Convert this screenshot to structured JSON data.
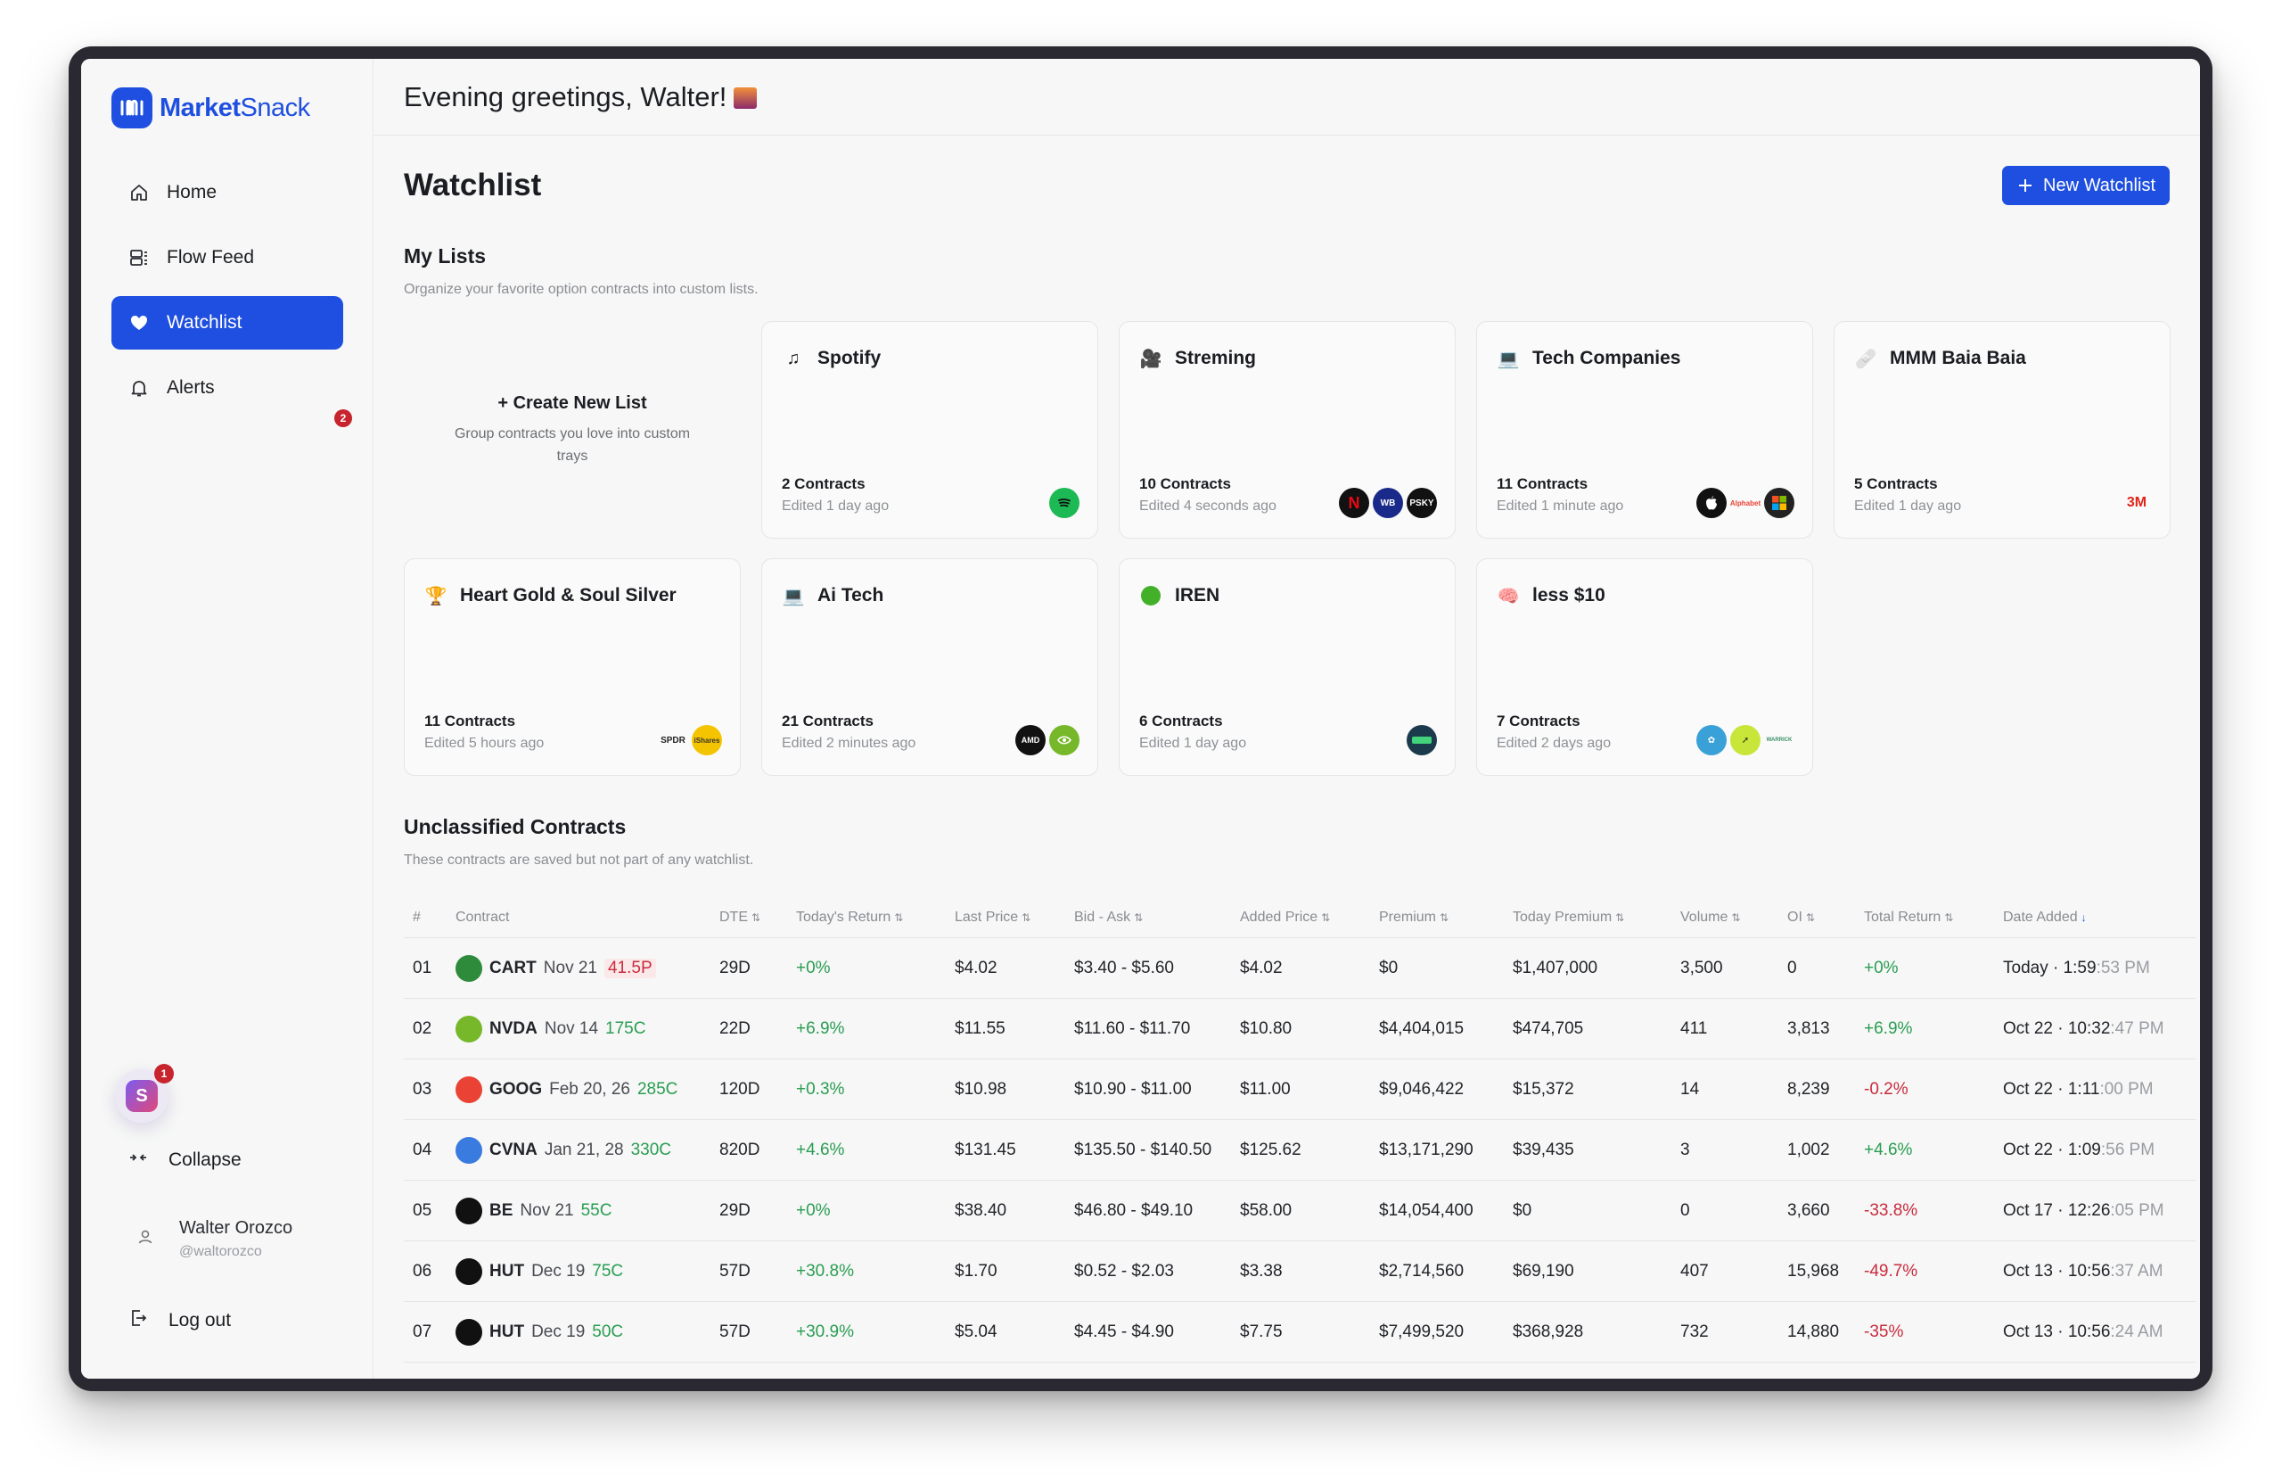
{
  "app": {
    "brand_bold": "Market",
    "brand_light": "Snack"
  },
  "greeting": "Evening greetings, Walter!",
  "nav": [
    {
      "label": "Home",
      "icon": "home-icon"
    },
    {
      "label": "Flow Feed",
      "icon": "feed-icon"
    },
    {
      "label": "Watchlist",
      "icon": "heart-icon",
      "active": true
    },
    {
      "label": "Alerts",
      "icon": "bell-icon",
      "badge": "2"
    }
  ],
  "help_badge": "1",
  "collapse_label": "Collapse",
  "user": {
    "name": "Walter Orozco",
    "handle": "@waltorozco"
  },
  "logout_label": "Log out",
  "page_title": "Watchlist",
  "new_button": "New Watchlist",
  "my_lists": {
    "title": "My Lists",
    "subtitle": "Organize your favorite option contracts into custom lists.",
    "create_title": "+ Create New List",
    "create_sub": "Group contracts you love into custom trays",
    "cards": [
      {
        "name": "Spotify",
        "emoji": "♫",
        "count": "2 Contracts",
        "edited": "Edited 1 day ago"
      },
      {
        "name": "Streming",
        "emoji": "🎥",
        "count": "10 Contracts",
        "edited": "Edited 4 seconds ago"
      },
      {
        "name": "Tech Companies",
        "emoji": "💻",
        "count": "11 Contracts",
        "edited": "Edited 1 minute ago"
      },
      {
        "name": "MMM Baia Baia",
        "emoji": "🩹",
        "count": "5 Contracts",
        "edited": "Edited 1 day ago",
        "logo_text": "3M"
      },
      {
        "name": "Heart Gold & Soul Silver",
        "emoji": "🏆",
        "count": "11 Contracts",
        "edited": "Edited 5 hours ago",
        "logo_text": "SPDR"
      },
      {
        "name": "Ai Tech",
        "emoji": "💻",
        "count": "21 Contracts",
        "edited": "Edited 2 minutes ago",
        "logo_text": "AMD"
      },
      {
        "name": "IREN",
        "emoji": "🟢",
        "count": "6 Contracts",
        "edited": "Edited 1 day ago"
      },
      {
        "name": "less $10",
        "emoji": "🧠",
        "count": "7 Contracts",
        "edited": "Edited 2 days ago"
      }
    ]
  },
  "unclassified": {
    "title": "Unclassified Contracts",
    "subtitle": "These contracts are saved but not part of any watchlist.",
    "columns": [
      "#",
      "Contract",
      "DTE",
      "Today's Return",
      "Last Price",
      "Bid - Ask",
      "Added Price",
      "Premium",
      "Today Premium",
      "Volume",
      "OI",
      "Total Return",
      "Date Added"
    ],
    "rows": [
      {
        "n": "01",
        "ticker": "CART",
        "exp": "Nov 21",
        "strike": "41.5P",
        "put": true,
        "dte": "29D",
        "today": "+0%",
        "today_sign": "pos",
        "last": "$4.02",
        "bidask": "$3.40 - $5.60",
        "added": "$4.02",
        "premium": "$0",
        "today_prem": "$1,407,000",
        "volume": "3,500",
        "oi": "0",
        "total": "+0%",
        "total_sign": "pos",
        "date": "Today · 1:59",
        "date_muted": ":53 PM",
        "logo_color": "#2e8b3c"
      },
      {
        "n": "02",
        "ticker": "NVDA",
        "exp": "Nov 14",
        "strike": "175C",
        "dte": "22D",
        "today": "+6.9%",
        "today_sign": "pos",
        "last": "$11.55",
        "bidask": "$11.60 - $11.70",
        "added": "$10.80",
        "premium": "$4,404,015",
        "today_prem": "$474,705",
        "volume": "411",
        "oi": "3,813",
        "total": "+6.9%",
        "total_sign": "pos",
        "date": "Oct 22 · 10:32",
        "date_muted": ":47 PM",
        "logo_color": "#76b82a"
      },
      {
        "n": "03",
        "ticker": "GOOG",
        "exp": "Feb 20, 26",
        "strike": "285C",
        "dte": "120D",
        "today": "+0.3%",
        "today_sign": "pos",
        "last": "$10.98",
        "bidask": "$10.90 - $11.00",
        "added": "$11.00",
        "premium": "$9,046,422",
        "today_prem": "$15,372",
        "volume": "14",
        "oi": "8,239",
        "total": "-0.2%",
        "total_sign": "neg",
        "date": "Oct 22 · 1:11",
        "date_muted": ":00 PM",
        "logo_color": "#ea4335"
      },
      {
        "n": "04",
        "ticker": "CVNA",
        "exp": "Jan 21, 28",
        "strike": "330C",
        "dte": "820D",
        "today": "+4.6%",
        "today_sign": "pos",
        "last": "$131.45",
        "bidask": "$135.50 - $140.50",
        "added": "$125.62",
        "premium": "$13,171,290",
        "today_prem": "$39,435",
        "volume": "3",
        "oi": "1,002",
        "total": "+4.6%",
        "total_sign": "pos",
        "date": "Oct 22 · 1:09",
        "date_muted": ":56 PM",
        "logo_color": "#3a7be0"
      },
      {
        "n": "05",
        "ticker": "BE",
        "exp": "Nov 21",
        "strike": "55C",
        "dte": "29D",
        "today": "+0%",
        "today_sign": "pos",
        "last": "$38.40",
        "bidask": "$46.80 - $49.10",
        "added": "$58.00",
        "premium": "$14,054,400",
        "today_prem": "$0",
        "volume": "0",
        "oi": "3,660",
        "total": "-33.8%",
        "total_sign": "neg",
        "date": "Oct 17 · 12:26",
        "date_muted": ":05 PM",
        "logo_color": "#111111"
      },
      {
        "n": "06",
        "ticker": "HUT",
        "exp": "Dec 19",
        "strike": "75C",
        "dte": "57D",
        "today": "+30.8%",
        "today_sign": "pos",
        "last": "$1.70",
        "bidask": "$0.52 - $2.03",
        "added": "$3.38",
        "premium": "$2,714,560",
        "today_prem": "$69,190",
        "volume": "407",
        "oi": "15,968",
        "total": "-49.7%",
        "total_sign": "neg",
        "date": "Oct 13 · 10:56",
        "date_muted": ":37 AM",
        "logo_color": "#111111"
      },
      {
        "n": "07",
        "ticker": "HUT",
        "exp": "Dec 19",
        "strike": "50C",
        "dte": "57D",
        "today": "+30.9%",
        "today_sign": "pos",
        "last": "$5.04",
        "bidask": "$4.45 - $4.90",
        "added": "$7.75",
        "premium": "$7,499,520",
        "today_prem": "$368,928",
        "volume": "732",
        "oi": "14,880",
        "total": "-35%",
        "total_sign": "neg",
        "date": "Oct 13 · 10:56",
        "date_muted": ":24 AM",
        "logo_color": "#111111"
      }
    ]
  },
  "colors": {
    "accent": "#1f4fe0",
    "positive": "#2a9d52",
    "negative": "#c92c3f"
  }
}
